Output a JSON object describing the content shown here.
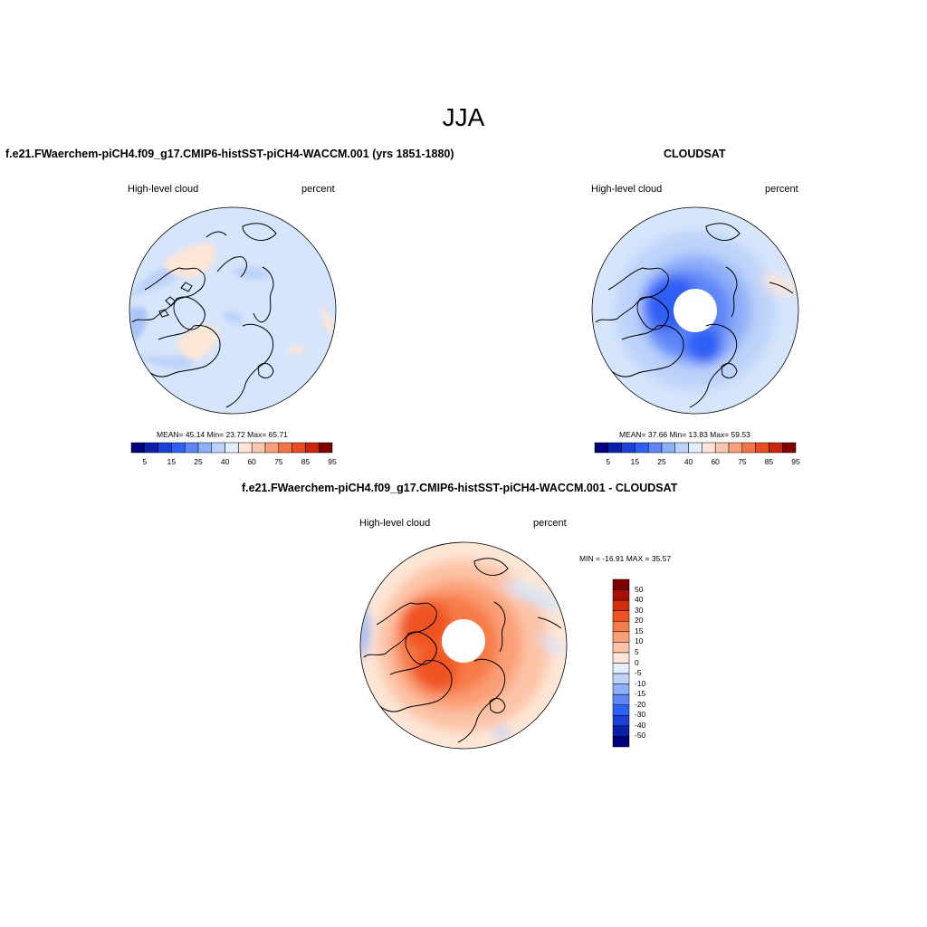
{
  "main_title": "JJA",
  "left_panel": {
    "title": "f.e21.FWaerchem-piCH4.f09_g17.CMIP6-histSST-piCH4-WACCM.001 (yrs 1851-1880)",
    "left_label": "High-level cloud",
    "right_label": "percent",
    "stats": "MEAN=  45.14  Min=  23.72  Max=  65.71"
  },
  "right_panel": {
    "title": "CLOUDSAT",
    "left_label": "High-level cloud",
    "right_label": "percent",
    "stats": "MEAN=  37.66  Min=  13.83  Max=  59.53"
  },
  "diff_panel": {
    "title": "f.e21.FWaerchem-piCH4.f09_g17.CMIP6-histSST-piCH4-WACCM.001 - CLOUDSAT",
    "left_label": "High-level cloud",
    "right_label": "percent",
    "minmax": "MIN = -16.91 MAX =  35.57"
  },
  "colorbar_abs": {
    "colors": [
      "#00007f",
      "#0a1fa8",
      "#1b3fd6",
      "#2f5ff5",
      "#5e86f7",
      "#8eaef8",
      "#bdd3fa",
      "#e2eefc",
      "#fde6d6",
      "#fbc8ad",
      "#f7a07a",
      "#f3764a",
      "#e84a22",
      "#c9260e",
      "#7f0000"
    ],
    "tick_labels": [
      "5",
      "15",
      "25",
      "40",
      "60",
      "75",
      "85",
      "95"
    ]
  },
  "colorbar_diff": {
    "colors": [
      "#7f0000",
      "#a90f08",
      "#d2300d",
      "#f05322",
      "#f67c47",
      "#fa9f77",
      "#fcc3a6",
      "#fde6d6",
      "#e2eefc",
      "#bdd3fa",
      "#8eaef8",
      "#5e86f7",
      "#2f5ff5",
      "#1b3fd6",
      "#0a1fa8",
      "#00007f"
    ],
    "labels": [
      "50",
      "40",
      "30",
      "20",
      "15",
      "10",
      "5",
      "0",
      "-5",
      "-10",
      "-15",
      "-20",
      "-30",
      "-40",
      "-50"
    ]
  }
}
